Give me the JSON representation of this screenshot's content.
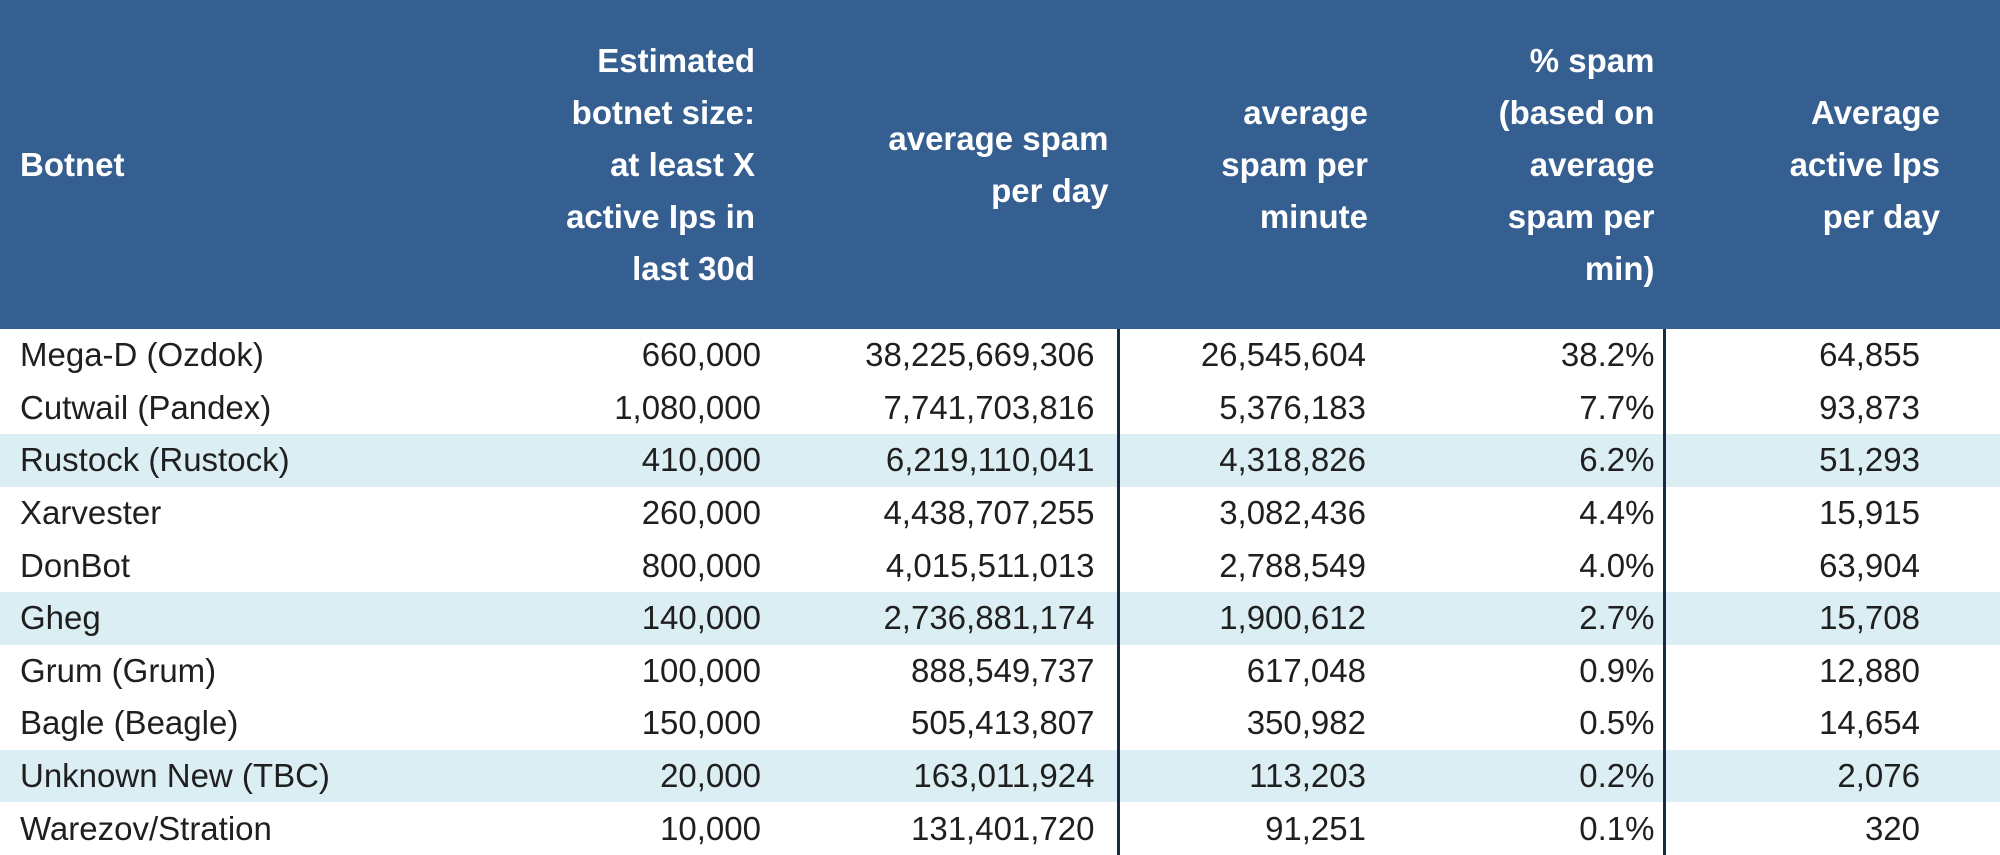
{
  "colors": {
    "header_bg": "#365f91",
    "header_text": "#ffffff",
    "shaded_row": "#dbeef4",
    "divider": "#1a2a40"
  },
  "table": {
    "headers": [
      [
        "Botnet"
      ],
      [
        "Estimated",
        "botnet size:",
        "at least X",
        "active Ips in",
        "last 30d"
      ],
      [
        "average spam",
        "per day"
      ],
      [
        "average",
        "spam per",
        "minute"
      ],
      [
        "% spam",
        "(based on",
        "average",
        "spam per",
        "min)"
      ],
      [
        "Average",
        "active Ips",
        "per day"
      ]
    ],
    "rows": [
      {
        "shaded": false,
        "cells": [
          "Mega-D (Ozdok)",
          "660,000",
          "38,225,669,306",
          "26,545,604",
          "38.2%",
          "64,855"
        ]
      },
      {
        "shaded": false,
        "cells": [
          "Cutwail (Pandex)",
          "1,080,000",
          "7,741,703,816",
          "5,376,183",
          "7.7%",
          "93,873"
        ]
      },
      {
        "shaded": true,
        "cells": [
          "Rustock (Rustock)",
          "410,000",
          "6,219,110,041",
          "4,318,826",
          "6.2%",
          "51,293"
        ]
      },
      {
        "shaded": false,
        "cells": [
          "Xarvester",
          "260,000",
          "4,438,707,255",
          "3,082,436",
          "4.4%",
          "15,915"
        ]
      },
      {
        "shaded": false,
        "cells": [
          "DonBot",
          "800,000",
          "4,015,511,013",
          "2,788,549",
          "4.0%",
          "63,904"
        ]
      },
      {
        "shaded": true,
        "cells": [
          "Gheg",
          "140,000",
          "2,736,881,174",
          "1,900,612",
          "2.7%",
          "15,708"
        ]
      },
      {
        "shaded": false,
        "cells": [
          "Grum (Grum)",
          "100,000",
          "888,549,737",
          "617,048",
          "0.9%",
          "12,880"
        ]
      },
      {
        "shaded": false,
        "cells": [
          "Bagle (Beagle)",
          "150,000",
          "505,413,807",
          "350,982",
          "0.5%",
          "14,654"
        ]
      },
      {
        "shaded": true,
        "cells": [
          "Unknown New (TBC)",
          "20,000",
          "163,011,924",
          "113,203",
          "0.2%",
          "2,076"
        ]
      },
      {
        "shaded": false,
        "cells": [
          "Warezov/Stration",
          "10,000",
          "131,401,720",
          "91,251",
          "0.1%",
          "320"
        ]
      }
    ]
  }
}
